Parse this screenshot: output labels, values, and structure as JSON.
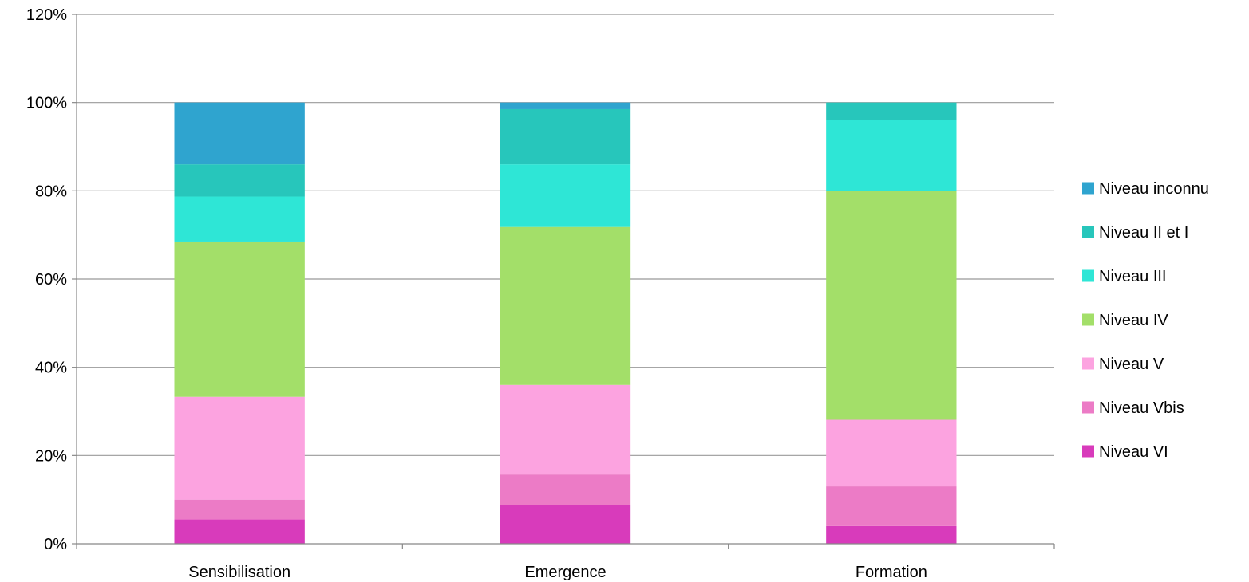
{
  "chart_data": {
    "type": "bar",
    "stacked": true,
    "categories": [
      "Sensibilisation",
      "Emergence",
      "Formation"
    ],
    "series": [
      {
        "name": "Niveau VI",
        "color": "#d83bbb",
        "values": [
          5.5,
          8.8,
          4.0
        ]
      },
      {
        "name": "Niveau Vbis",
        "color": "#ec7bc6",
        "values": [
          4.5,
          6.9,
          9.0
        ]
      },
      {
        "name": "Niveau V",
        "color": "#fca3e0",
        "values": [
          23.3,
          20.3,
          15.1
        ]
      },
      {
        "name": "Niveau IV",
        "color": "#a3df69",
        "values": [
          35.2,
          35.8,
          51.9
        ]
      },
      {
        "name": "Niveau III",
        "color": "#2ee6d6",
        "values": [
          10.2,
          14.2,
          16.0
        ]
      },
      {
        "name": "Niveau II et I",
        "color": "#27c6bb",
        "values": [
          7.3,
          12.5,
          4.0
        ]
      },
      {
        "name": "Niveau inconnu",
        "color": "#2fa4cf",
        "values": [
          14.0,
          1.5,
          0.0
        ]
      }
    ],
    "legend_order": [
      "Niveau inconnu",
      "Niveau II et I",
      "Niveau III",
      "Niveau IV",
      "Niveau V",
      "Niveau Vbis",
      "Niveau VI"
    ],
    "yticks": [
      "0%",
      "20%",
      "40%",
      "60%",
      "80%",
      "100%",
      "120%"
    ],
    "ylim": [
      0,
      120
    ],
    "grid": true,
    "legend_position": "right",
    "gridline_color": "#999999"
  }
}
